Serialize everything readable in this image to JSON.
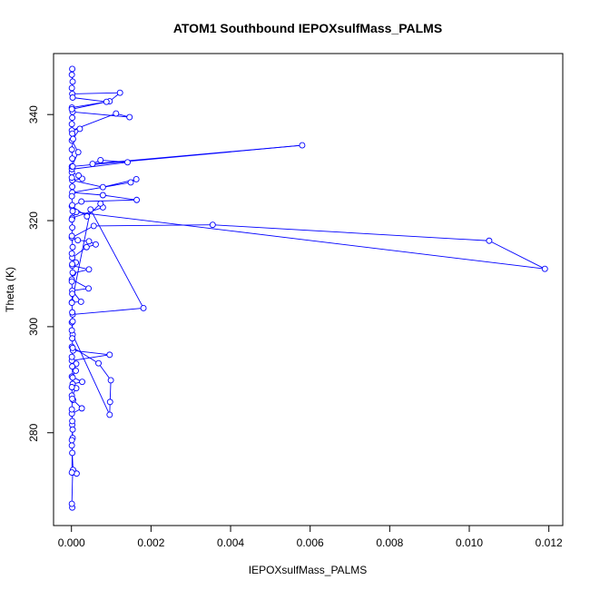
{
  "chart_data": {
    "type": "line",
    "title": "ATOM1 Southbound IEPOXsulfMass_PALMS",
    "xlabel": "IEPOXsulfMass_PALMS",
    "ylabel": "Theta (K)",
    "xlim": [
      -0.00045,
      0.01235
    ],
    "ylim": [
      262.5,
      351.5
    ],
    "x_ticks": [
      0.0,
      0.002,
      0.004,
      0.006,
      0.008,
      0.01,
      0.012
    ],
    "x_tick_labels": [
      "0.000",
      "0.002",
      "0.004",
      "0.006",
      "0.008",
      "0.010",
      "0.012"
    ],
    "y_ticks": [
      280,
      300,
      320,
      340
    ],
    "y_tick_labels": [
      "280",
      "300",
      "320",
      "340"
    ],
    "grid": false,
    "line_color": "#0000ff",
    "marker": "open-circle",
    "series": [
      {
        "name": "",
        "points": [
          [
            2e-05,
            265.9
          ],
          [
            1e-05,
            266.6
          ],
          [
            3e-05,
            272.5
          ],
          [
            0.00013,
            272.3
          ],
          [
            4e-05,
            273.0
          ],
          [
            1e-05,
            277.6
          ],
          [
            3e-05,
            279.0
          ],
          [
            2e-05,
            281.5
          ],
          [
            1e-05,
            283.6
          ],
          [
            0.00026,
            284.6
          ],
          [
            4e-05,
            286.2
          ],
          [
            1e-05,
            287.0
          ],
          [
            0.00012,
            288.4
          ],
          [
            3e-05,
            289.2
          ],
          [
            0.00027,
            289.6
          ],
          [
            1e-05,
            290.6
          ],
          [
            0.00011,
            291.7
          ],
          [
            7e-05,
            292.9
          ],
          [
            0.00012,
            293.0
          ],
          [
            1e-05,
            293.6
          ],
          [
            0.00096,
            294.7
          ],
          [
            4e-05,
            295.5
          ],
          [
            1e-05,
            296.2
          ],
          [
            0.00068,
            293.1
          ],
          [
            0.00099,
            289.9
          ],
          [
            0.00097,
            285.8
          ],
          [
            0.00096,
            283.4
          ],
          [
            3e-05,
            298.5
          ],
          [
            1e-05,
            300.8
          ],
          [
            3e-05,
            302.3
          ],
          [
            0.00181,
            303.5
          ],
          [
            0.00048,
            322.1
          ],
          [
            1e-05,
            304.6
          ],
          [
            0.00024,
            304.7
          ],
          [
            2e-05,
            306.8
          ],
          [
            0.00043,
            307.2
          ],
          [
            1e-05,
            308.9
          ],
          [
            4e-05,
            310.1
          ],
          [
            0.00044,
            310.8
          ],
          [
            2e-05,
            311.5
          ],
          [
            0.00011,
            312.1
          ],
          [
            2e-05,
            313.0
          ],
          [
            0.00038,
            315.0
          ],
          [
            0.00061,
            315.5
          ],
          [
            0.00044,
            316.1
          ],
          [
            0.00016,
            316.3
          ],
          [
            1e-05,
            316.8
          ],
          [
            0.00056,
            319.0
          ],
          [
            0.00355,
            319.2
          ],
          [
            0.0105,
            316.2
          ],
          [
            0.0119,
            310.9
          ],
          [
            0.00012,
            321.6
          ],
          [
            2e-05,
            320.5
          ],
          [
            0.00079,
            322.5
          ],
          [
            0.00073,
            323.2
          ],
          [
            0.00039,
            320.8
          ],
          [
            1e-05,
            322.7
          ],
          [
            0.00025,
            323.6
          ],
          [
            0.00164,
            323.9
          ],
          [
            0.00079,
            324.8
          ],
          [
            2e-05,
            325.3
          ],
          [
            0.00149,
            327.2
          ],
          [
            0.00163,
            327.8
          ],
          [
            0.00079,
            326.3
          ],
          [
            2e-05,
            327.6
          ],
          [
            0.00027,
            327.9
          ],
          [
            0.00018,
            328.5
          ],
          [
            1e-05,
            329.1
          ],
          [
            1e-05,
            329.7
          ],
          [
            0.00141,
            331.0
          ],
          [
            0.00073,
            331.4
          ],
          [
            0.00053,
            330.7
          ],
          [
            0.0058,
            334.2
          ],
          [
            1e-05,
            330.2
          ],
          [
            0.00017,
            332.9
          ],
          [
            1e-05,
            335.1
          ],
          [
            0.00021,
            337.3
          ],
          [
            1e-05,
            337.0
          ],
          [
            0.00112,
            340.2
          ],
          [
            0.00146,
            339.5
          ],
          [
            3e-05,
            340.5
          ],
          [
            1e-05,
            341.3
          ],
          [
            0.00096,
            342.5
          ],
          [
            0.00122,
            344.1
          ],
          [
            2e-05,
            343.9
          ],
          [
            1e-05,
            345.0
          ],
          [
            3e-05,
            346.2
          ],
          [
            1e-05,
            347.5
          ],
          [
            2e-05,
            348.6
          ],
          [
            3e-05,
            343.2
          ],
          [
            0.00088,
            342.4
          ],
          [
            1e-05,
            341.0
          ],
          [
            2e-05,
            339.4
          ],
          [
            1e-05,
            338.2
          ],
          [
            2e-05,
            336.4
          ],
          [
            4e-05,
            335.4
          ],
          [
            1e-05,
            333.4
          ],
          [
            2e-05,
            331.7
          ],
          [
            3e-05,
            330.2
          ],
          [
            1e-05,
            328.1
          ],
          [
            2e-05,
            326.4
          ],
          [
            1e-05,
            324.6
          ],
          [
            2e-05,
            322.9
          ],
          [
            3e-05,
            321.8
          ],
          [
            1e-05,
            320.2
          ],
          [
            2e-05,
            318.7
          ],
          [
            1e-05,
            317.1
          ],
          [
            3e-05,
            315.0
          ],
          [
            1e-05,
            313.8
          ],
          [
            2e-05,
            311.8
          ],
          [
            3e-05,
            310.2
          ],
          [
            1e-05,
            308.5
          ],
          [
            2e-05,
            306.2
          ],
          [
            1e-05,
            304.5
          ],
          [
            2e-05,
            302.7
          ],
          [
            3e-05,
            301.0
          ],
          [
            1e-05,
            299.3
          ],
          [
            2e-05,
            297.8
          ],
          [
            3e-05,
            296.0
          ],
          [
            1e-05,
            294.3
          ],
          [
            2e-05,
            292.5
          ],
          [
            3e-05,
            290.4
          ],
          [
            1e-05,
            288.6
          ],
          [
            2e-05,
            286.4
          ],
          [
            1e-05,
            284.4
          ],
          [
            2e-05,
            282.2
          ],
          [
            3e-05,
            280.6
          ],
          [
            1e-05,
            278.6
          ],
          [
            2e-05,
            276.2
          ],
          [
            1e-05,
            272.5
          ]
        ]
      }
    ]
  }
}
